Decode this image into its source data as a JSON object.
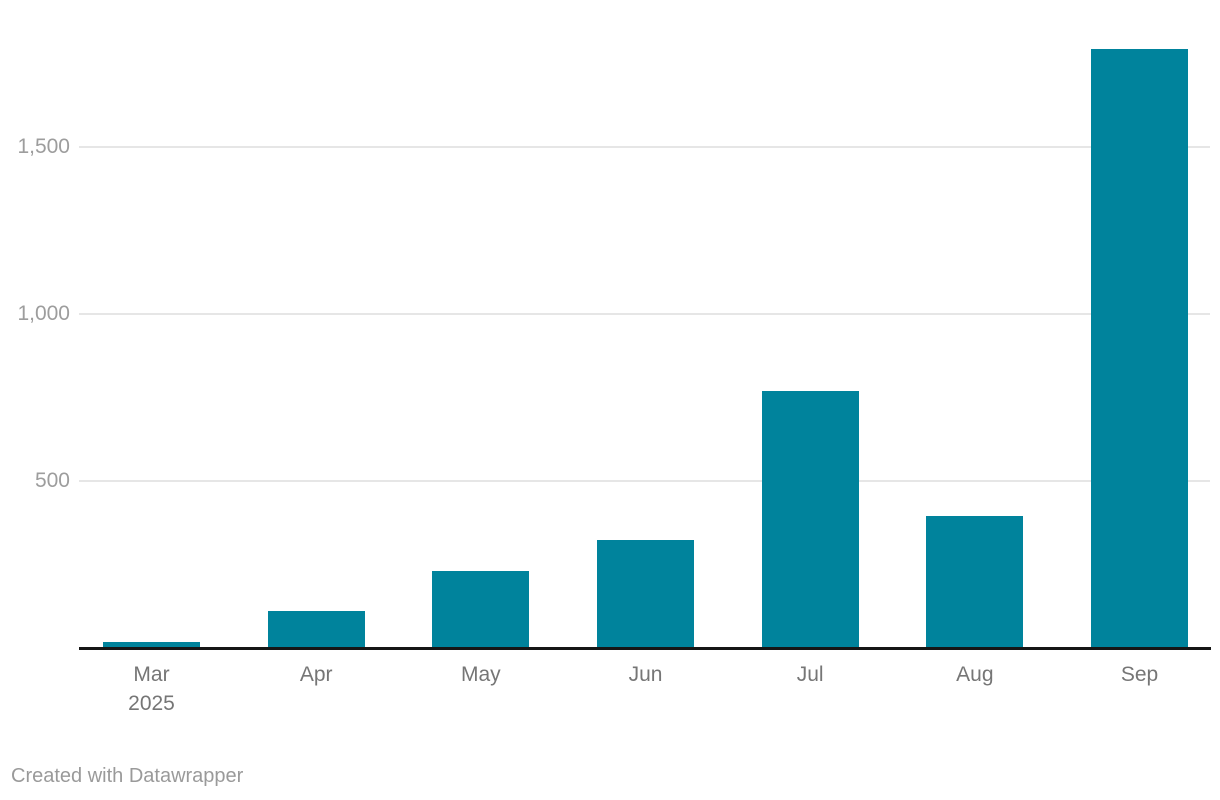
{
  "chart_data": {
    "type": "bar",
    "categories": [
      "Mar 2025",
      "Apr",
      "May",
      "Jun",
      "Jul",
      "Aug",
      "Sep"
    ],
    "x_ticks": [
      [
        "Mar",
        "2025"
      ],
      [
        "Apr"
      ],
      [
        "May"
      ],
      [
        "Jun"
      ],
      [
        "Jul"
      ],
      [
        "Aug"
      ],
      [
        "Sep"
      ]
    ],
    "values": [
      18,
      110,
      230,
      325,
      770,
      395,
      1795
    ],
    "title": "",
    "xlabel": "",
    "ylabel": "",
    "ylim": [
      0,
      1800
    ],
    "yticks": [
      {
        "value": 500,
        "label": "500"
      },
      {
        "value": 1000,
        "label": "1,000"
      },
      {
        "value": 1500,
        "label": "1,500"
      }
    ],
    "grid": "horizontal",
    "legend": "none",
    "bar_color": "#00839c"
  },
  "colors": {
    "bar": "#00839c",
    "axis_line": "#161616",
    "gridline": "#e6e6e6",
    "y_tick_text": "#9d9d9d",
    "x_tick_text": "#767676",
    "footer_text": "#9a9a9a",
    "background": "#ffffff"
  },
  "footer": {
    "text": "Created with Datawrapper"
  }
}
